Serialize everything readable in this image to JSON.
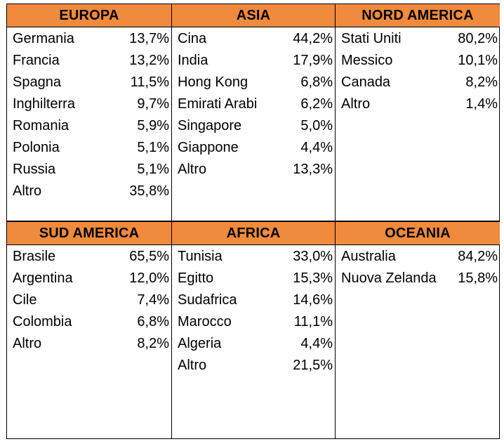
{
  "panels": [
    {
      "title": "EUROPA",
      "rows": [
        {
          "name": "Germania",
          "value": "13,7%"
        },
        {
          "name": "Francia",
          "value": "13,2%"
        },
        {
          "name": "Spagna",
          "value": "11,5%"
        },
        {
          "name": "Inghilterra",
          "value": "9,7%"
        },
        {
          "name": "Romania",
          "value": "5,9%"
        },
        {
          "name": "Polonia",
          "value": "5,1%"
        },
        {
          "name": "Russia",
          "value": "5,1%"
        },
        {
          "name": "Altro",
          "value": "35,8%"
        }
      ]
    },
    {
      "title": "ASIA",
      "rows": [
        {
          "name": "Cina",
          "value": "44,2%"
        },
        {
          "name": "India",
          "value": "17,9%"
        },
        {
          "name": "Hong Kong",
          "value": "6,8%"
        },
        {
          "name": "Emirati Arabi",
          "value": "6,2%"
        },
        {
          "name": "Singapore",
          "value": "5,0%"
        },
        {
          "name": "Giappone",
          "value": "4,4%"
        },
        {
          "name": "Altro",
          "value": "13,3%"
        }
      ]
    },
    {
      "title": "NORD AMERICA",
      "rows": [
        {
          "name": "Stati Uniti",
          "value": "80,2%"
        },
        {
          "name": "Messico",
          "value": "10,1%"
        },
        {
          "name": "Canada",
          "value": "8,2%"
        },
        {
          "name": "Altro",
          "value": "1,4%"
        }
      ]
    },
    {
      "title": "SUD AMERICA",
      "rows": [
        {
          "name": "Brasile",
          "value": "65,5%"
        },
        {
          "name": "Argentina",
          "value": "12,0%"
        },
        {
          "name": "Cile",
          "value": "7,4%"
        },
        {
          "name": "Colombia",
          "value": "6,8%"
        },
        {
          "name": "Altro",
          "value": "8,2%"
        }
      ]
    },
    {
      "title": "AFRICA",
      "rows": [
        {
          "name": "Tunisia",
          "value": "33,0%"
        },
        {
          "name": "Egitto",
          "value": "15,3%"
        },
        {
          "name": "Sudafrica",
          "value": "14,6%"
        },
        {
          "name": "Marocco",
          "value": "11,1%"
        },
        {
          "name": "Algeria",
          "value": "4,4%"
        },
        {
          "name": "Altro",
          "value": "21,5%"
        }
      ]
    },
    {
      "title": "OCEANIA",
      "rows": [
        {
          "name": "Australia",
          "value": "84,2%"
        },
        {
          "name": "Nuova Zelanda",
          "value": "15,8%"
        }
      ]
    }
  ],
  "colors": {
    "header_bg": "#f08a3c",
    "border": "#000000"
  }
}
